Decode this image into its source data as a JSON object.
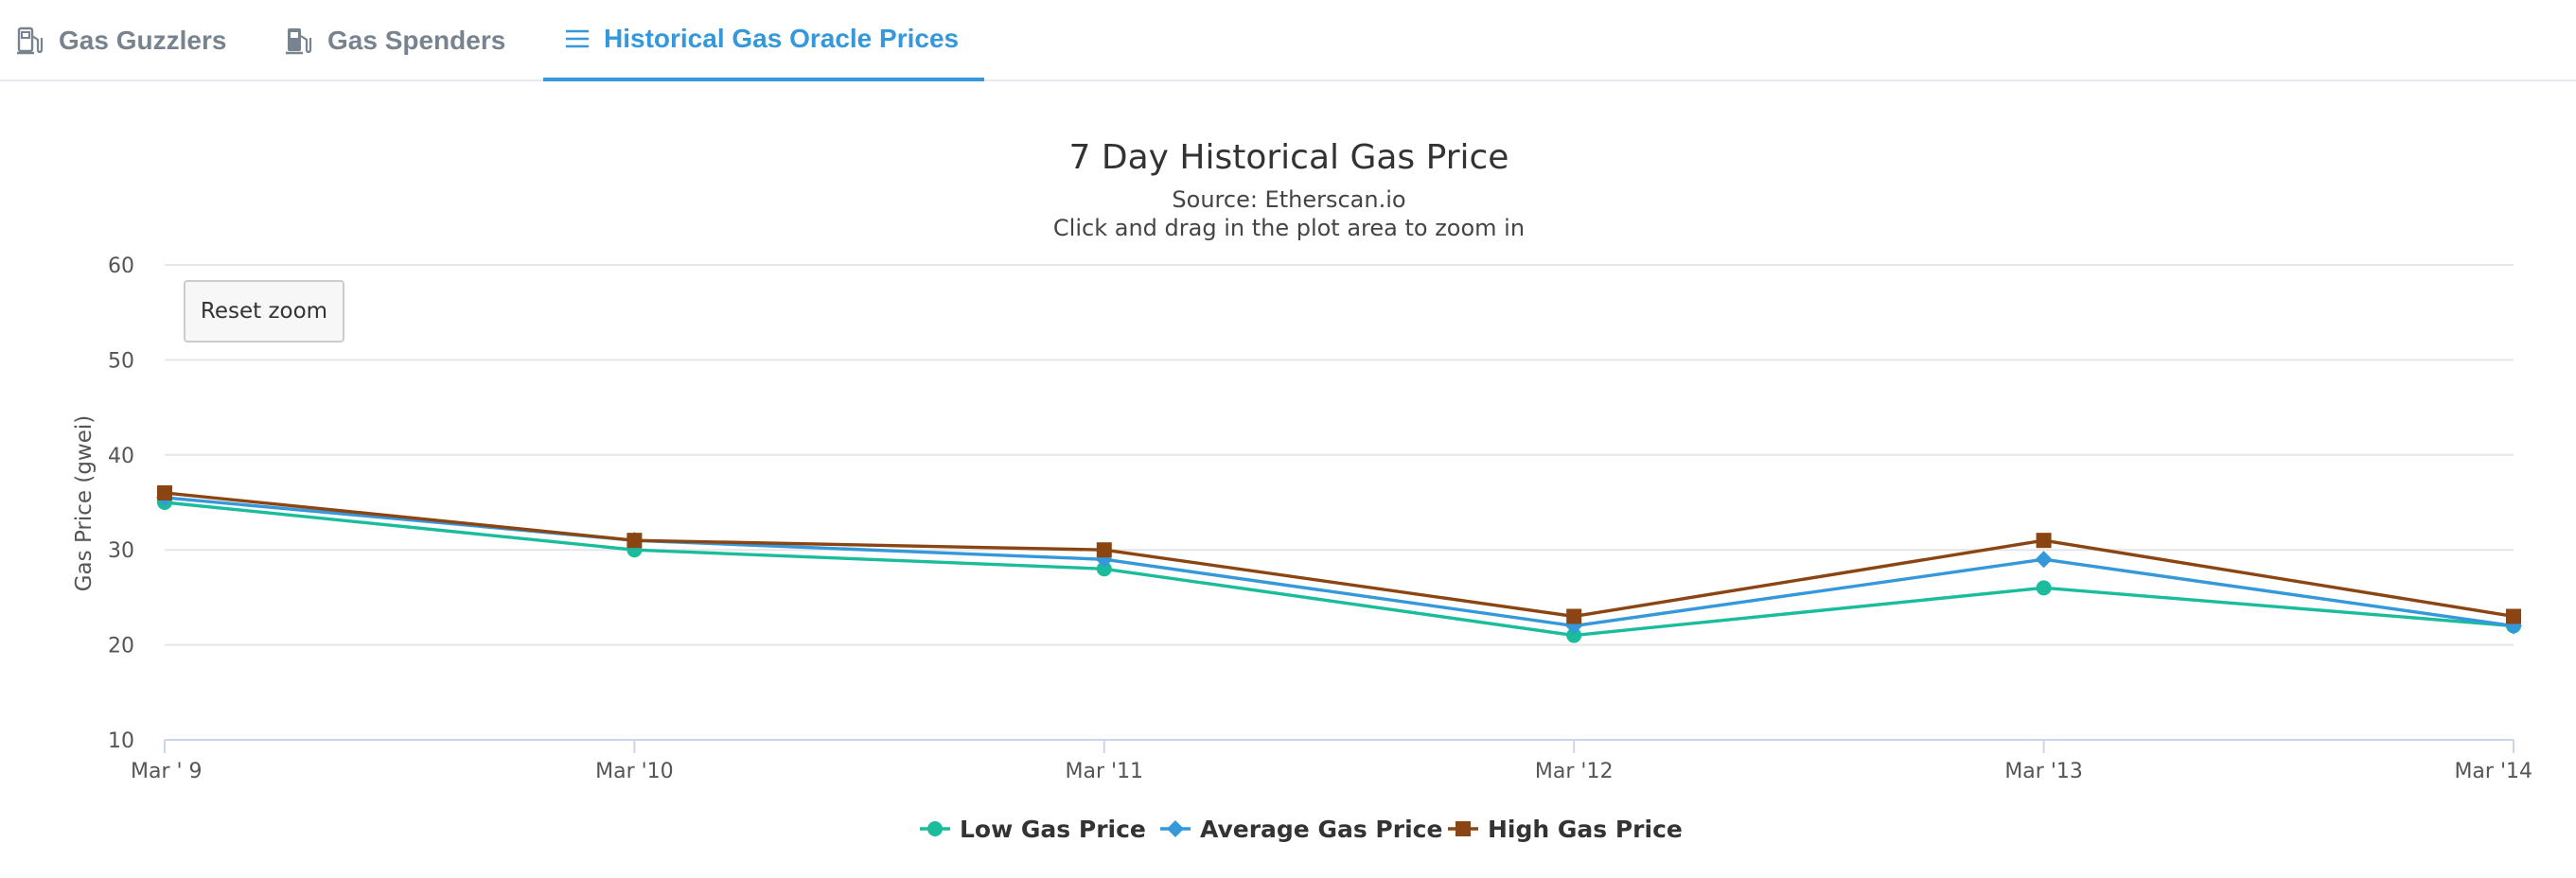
{
  "tabs": [
    {
      "label": "Gas Guzzlers",
      "icon": "gas-pump-icon",
      "active": false
    },
    {
      "label": "Gas Spenders",
      "icon": "gas-station-icon",
      "active": false
    },
    {
      "label": "Historical Gas Oracle Prices",
      "icon": "list-icon",
      "active": true
    }
  ],
  "chart_data": {
    "type": "line",
    "title": "7 Day Historical Gas Price",
    "subtitle": "Source: Etherscan.io",
    "subtitle2": "Click and drag in the plot area to zoom in",
    "ylabel": "Gas Price (gwei)",
    "xlabel": "",
    "categories": [
      "Mar ' 9",
      "Mar '10",
      "Mar '11",
      "Mar '12",
      "Mar '13",
      "Mar '14"
    ],
    "ylim": [
      10,
      60
    ],
    "yticks": [
      10,
      20,
      30,
      40,
      50,
      60
    ],
    "grid": true,
    "legend": "bottom-center",
    "reset_zoom_label": "Reset zoom",
    "series": [
      {
        "name": "Low Gas Price",
        "color": "#1abc9c",
        "marker": "circle",
        "values": [
          35,
          30,
          28,
          21,
          26,
          22
        ]
      },
      {
        "name": "Average Gas Price",
        "color": "#3498db",
        "marker": "diamond",
        "values": [
          35.5,
          31,
          29,
          22,
          29,
          22
        ]
      },
      {
        "name": "High Gas Price",
        "color": "#8b4513",
        "marker": "square",
        "values": [
          36,
          31,
          30,
          23,
          31,
          23
        ]
      }
    ]
  }
}
